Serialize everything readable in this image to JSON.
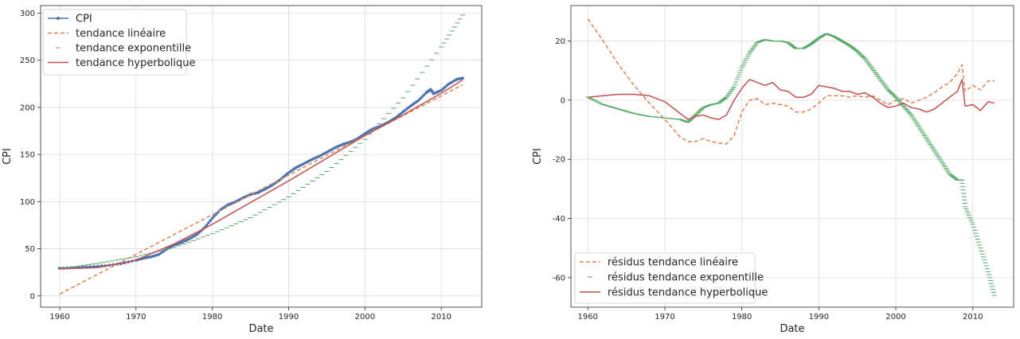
{
  "chart_data": [
    {
      "type": "line",
      "xlabel": "Date",
      "ylabel": "CPI",
      "xlim": [
        1957.5,
        2015.3
      ],
      "ylim": [
        -12,
        308
      ],
      "xticks": [
        1960,
        1970,
        1980,
        1990,
        2000,
        2010
      ],
      "yticks": [
        0,
        50,
        100,
        150,
        200,
        250,
        300
      ],
      "grid": true,
      "legend_position": "upper-left",
      "series": [
        {
          "name": "CPI",
          "style": "line-dots",
          "color": "#4c72b0",
          "x": [
            1960,
            1962,
            1964,
            1966,
            1968,
            1970,
            1971,
            1972,
            1973,
            1974,
            1975,
            1976,
            1977,
            1978,
            1979,
            1980,
            1981,
            1982,
            1983,
            1984,
            1985,
            1986,
            1987,
            1988,
            1989,
            1990,
            1991,
            1992,
            1993,
            1994,
            1995,
            1996,
            1997,
            1998,
            1999,
            2000,
            2001,
            2002,
            2003,
            2004,
            2005,
            2006,
            2007,
            2008,
            2008.6,
            2009,
            2010,
            2011,
            2012,
            2012.8
          ],
          "y": [
            29.4,
            30.0,
            30.9,
            32.0,
            34.1,
            37.8,
            40.0,
            41.5,
            44.0,
            49.5,
            53.9,
            56.9,
            60.6,
            65.2,
            72.6,
            82.4,
            90.9,
            96.5,
            99.6,
            103.9,
            107.6,
            109.6,
            113.6,
            118.3,
            124.0,
            130.7,
            136.2,
            140.3,
            144.5,
            148.2,
            152.4,
            156.9,
            160.5,
            163.0,
            166.6,
            172.2,
            177.1,
            179.9,
            184.0,
            188.9,
            195.3,
            201.6,
            207.3,
            215.3,
            219.0,
            214.5,
            218.1,
            224.9,
            229.6,
            231.0
          ]
        },
        {
          "name": "tendance linéaire",
          "style": "dashed",
          "color": "#dd8452",
          "x": [
            1960,
            2012.8
          ],
          "y": [
            2,
            224
          ]
        },
        {
          "name": "tendance exponentille",
          "style": "ticks",
          "color": "#55a868",
          "x": [
            1960,
            1965,
            1970,
            1975,
            1980,
            1985,
            1990,
            1995,
            2000,
            2005,
            2010,
            2012.8
          ],
          "y": [
            28.8,
            34.5,
            41.5,
            51.5,
            66.0,
            83.0,
            105.0,
            132.0,
            166.0,
            210.0,
            264.0,
            298.0
          ]
        },
        {
          "name": "tendance hyperbolique",
          "style": "solid",
          "color": "#c44e52",
          "x": [
            1960,
            1965,
            1970,
            1975,
            1980,
            1985,
            1990,
            1995,
            2000,
            2005,
            2010,
            2012.8
          ],
          "y": [
            28.5,
            30.0,
            38.0,
            55.0,
            76.0,
            99.0,
            122.0,
            146.0,
            170.0,
            192.0,
            215.0,
            229.0
          ]
        }
      ]
    },
    {
      "type": "line",
      "xlabel": "Date",
      "ylabel": "CPI",
      "xlim": [
        1957.8,
        2015.3
      ],
      "ylim": [
        -70,
        32
      ],
      "xticks": [
        1960,
        1970,
        1980,
        1990,
        2000,
        2010
      ],
      "yticks": [
        20,
        0,
        -20,
        -40,
        -60
      ],
      "grid": true,
      "legend_position": "lower-left",
      "series": [
        {
          "name": "résidus tendance linéaire",
          "style": "dashed",
          "color": "#dd8452",
          "x": [
            1960,
            1962,
            1964,
            1966,
            1968,
            1970,
            1972,
            1973,
            1974,
            1975,
            1976,
            1977,
            1978,
            1979,
            1980,
            1981,
            1982,
            1983,
            1984,
            1985,
            1986,
            1987,
            1988,
            1989,
            1990,
            1991,
            1992,
            1993,
            1994,
            1995,
            1996,
            1997,
            1998,
            1999,
            2000,
            2001,
            2002,
            2003,
            2004,
            2005,
            2006,
            2007,
            2008,
            2008.6,
            2009,
            2010,
            2011,
            2012,
            2012.8
          ],
          "y": [
            27.5,
            20.0,
            12.0,
            5.0,
            -1.0,
            -6.5,
            -12.5,
            -14.0,
            -14.0,
            -13.0,
            -14.0,
            -14.5,
            -14.8,
            -12.0,
            -4.0,
            0.0,
            0.5,
            -1.5,
            -1.0,
            -1.5,
            -2.0,
            -4.0,
            -4.0,
            -3.0,
            -1.0,
            1.5,
            1.5,
            1.5,
            1.0,
            1.5,
            1.0,
            1.5,
            0.0,
            -1.5,
            0.0,
            0.5,
            -1.0,
            0.0,
            1.0,
            2.5,
            4.5,
            6.0,
            9.0,
            12.0,
            3.0,
            5.0,
            3.5,
            6.5,
            6.5
          ]
        },
        {
          "name": "résidus tendance exponentille",
          "style": "ticks",
          "color": "#55a868",
          "x": [
            1960,
            1962,
            1964,
            1966,
            1968,
            1970,
            1972,
            1973,
            1974,
            1975,
            1976,
            1977,
            1978,
            1979,
            1980,
            1981,
            1982,
            1983,
            1984,
            1985,
            1986,
            1987,
            1988,
            1989,
            1990,
            1991,
            1992,
            1993,
            1994,
            1995,
            1996,
            1997,
            1998,
            1999,
            2000,
            2001,
            2002,
            2003,
            2004,
            2005,
            2006,
            2007,
            2008,
            2008.6,
            2009,
            2010,
            2011,
            2012,
            2012.8
          ],
          "y": [
            1.0,
            -1.5,
            -3.0,
            -4.5,
            -5.5,
            -6.0,
            -6.5,
            -7.5,
            -5.0,
            -2.5,
            -1.5,
            -1.0,
            1.0,
            4.5,
            11.0,
            16.0,
            19.5,
            20.5,
            20.0,
            20.0,
            19.5,
            17.5,
            17.5,
            19.0,
            21.0,
            22.5,
            21.5,
            20.0,
            18.5,
            16.5,
            14.0,
            10.5,
            7.0,
            3.5,
            1.0,
            -2.0,
            -5.0,
            -9.0,
            -13.0,
            -17.0,
            -21.0,
            -25.0,
            -27.0,
            -27.0,
            -36.0,
            -42.0,
            -50.0,
            -58.0,
            -66.0
          ]
        },
        {
          "name": "résidus tendance hyperbolique",
          "style": "solid",
          "color": "#c44e52",
          "x": [
            1960,
            1962,
            1964,
            1966,
            1968,
            1970,
            1971,
            1972,
            1973,
            1974,
            1975,
            1976,
            1977,
            1978,
            1979,
            1980,
            1981,
            1982,
            1983,
            1984,
            1985,
            1986,
            1987,
            1988,
            1989,
            1990,
            1991,
            1992,
            1993,
            1994,
            1995,
            1996,
            1997,
            1998,
            1999,
            2000,
            2001,
            2002,
            2003,
            2004,
            2005,
            2006,
            2007,
            2008,
            2008.6,
            2009,
            2010,
            2011,
            2012,
            2012.8
          ],
          "y": [
            1.0,
            1.5,
            2.0,
            2.0,
            1.5,
            -0.5,
            -2.5,
            -4.5,
            -6.5,
            -5.5,
            -5.0,
            -6.0,
            -6.5,
            -5.0,
            0.0,
            4.0,
            7.0,
            6.0,
            5.0,
            6.0,
            3.5,
            3.0,
            1.0,
            1.0,
            2.0,
            5.0,
            4.5,
            4.0,
            3.0,
            3.0,
            2.0,
            2.5,
            1.0,
            -1.0,
            -2.5,
            -2.0,
            -1.0,
            -2.5,
            -3.0,
            -4.0,
            -3.0,
            -1.0,
            1.0,
            3.0,
            7.0,
            -2.0,
            -1.5,
            -3.5,
            -0.5,
            -1.0
          ]
        }
      ]
    }
  ]
}
